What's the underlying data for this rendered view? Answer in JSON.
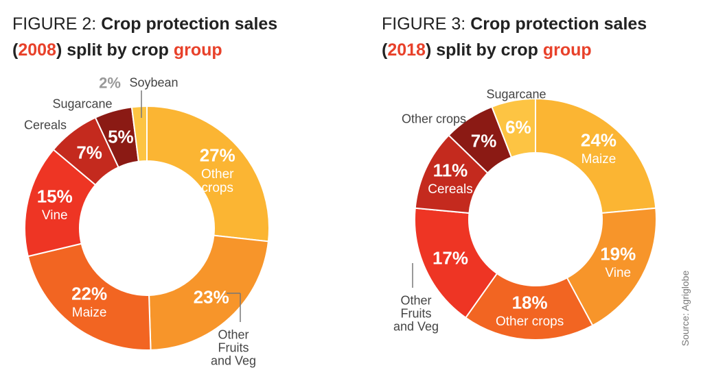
{
  "chart_data": [
    {
      "type": "pie",
      "donut": true,
      "title": [
        {
          "text": "FIGURE 2:",
          "color": "#222222",
          "weight": "normal"
        },
        {
          "text": "Crop protection sales",
          "color": "#222222",
          "weight": "bold"
        },
        {
          "text": "(",
          "color": "#222222",
          "weight": "bold"
        },
        {
          "text": "2008",
          "color": "#e8412a",
          "weight": "bold"
        },
        {
          "text": ") split by crop",
          "color": "#222222",
          "weight": "bold"
        },
        {
          "text": "group",
          "color": "#e8412a",
          "weight": "bold"
        }
      ],
      "categories": [
        "Other crops",
        "Other Fruits and Veg",
        "Maize",
        "Vine",
        "Cereals",
        "Sugarcane",
        "Soybean"
      ],
      "values": [
        27,
        23,
        22,
        15,
        7,
        5,
        2
      ],
      "value_labels": [
        "27%",
        "23%",
        "22%",
        "15%",
        "7%",
        "5%",
        "2%"
      ],
      "colors": [
        "#fbb533",
        "#f7952a",
        "#f26522",
        "#ee3524",
        "#c42a1e",
        "#8b1a14",
        "#fdc443"
      ]
    },
    {
      "type": "pie",
      "donut": true,
      "title": [
        {
          "text": "FIGURE 3:",
          "color": "#222222",
          "weight": "normal"
        },
        {
          "text": "Crop protection sales",
          "color": "#222222",
          "weight": "bold"
        },
        {
          "text": "(",
          "color": "#222222",
          "weight": "bold"
        },
        {
          "text": "2018",
          "color": "#e8412a",
          "weight": "bold"
        },
        {
          "text": ") split by crop",
          "color": "#222222",
          "weight": "bold"
        },
        {
          "text": "group",
          "color": "#e8412a",
          "weight": "bold"
        }
      ],
      "categories": [
        "Maize",
        "Vine",
        "Other crops",
        "Other Fruits and Veg",
        "Cereals",
        "Other crops",
        "Sugarcane"
      ],
      "values": [
        24,
        19,
        18,
        17,
        11,
        7,
        6
      ],
      "value_labels": [
        "24%",
        "19%",
        "18%",
        "17%",
        "11%",
        "7%",
        "6%"
      ],
      "colors": [
        "#fbb533",
        "#f7952a",
        "#f26522",
        "#ee3524",
        "#c42a1e",
        "#8b1a14",
        "#fdc443"
      ]
    }
  ],
  "source": "Source: Agriglobe"
}
